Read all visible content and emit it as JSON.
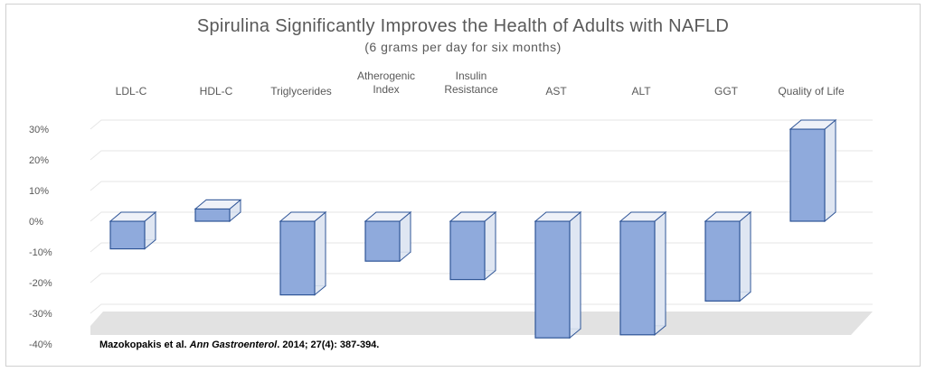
{
  "chart_data": {
    "type": "bar",
    "title": "Spirulina Significantly Improves the Health of Adults with NAFLD",
    "subtitle": "(6 grams per day for six months)",
    "categories": [
      "LDL-C",
      "HDL-C",
      "Triglycerides",
      "Atherogenic Index",
      "Insulin Resistance",
      "AST",
      "ALT",
      "GGT",
      "Quality of Life"
    ],
    "category_label_lines": [
      [
        "LDL-C"
      ],
      [
        "HDL-C"
      ],
      [
        "Triglycerides"
      ],
      [
        "Atherogenic",
        "Index"
      ],
      [
        "Insulin",
        "Resistance"
      ],
      [
        "AST"
      ],
      [
        "ALT"
      ],
      [
        "GGT"
      ],
      [
        "Quality of Life"
      ]
    ],
    "values": [
      -9,
      4,
      -24,
      -13,
      -19,
      -38,
      -37,
      -26,
      30
    ],
    "y_unit": "%",
    "ylim": [
      -40,
      30
    ],
    "yticks": [
      30,
      20,
      10,
      0,
      -10,
      -20,
      -30,
      -40
    ],
    "ytick_labels": [
      "30%",
      "20%",
      "10%",
      "0%",
      "-10%",
      "-20%",
      "-30%",
      "-40%"
    ],
    "grid": true,
    "legend": "none",
    "style": "3d-column",
    "bar_color": "#8faadc",
    "bar_edge_color": "#2f5597",
    "grid_color": "#e6e6e6",
    "floor_color": "#e2e2e2"
  },
  "citation": {
    "authors": "Mazokopakis et al.",
    "journal": "Ann Gastroenterol",
    "details": ". 2014; 27(4): 387-394."
  }
}
